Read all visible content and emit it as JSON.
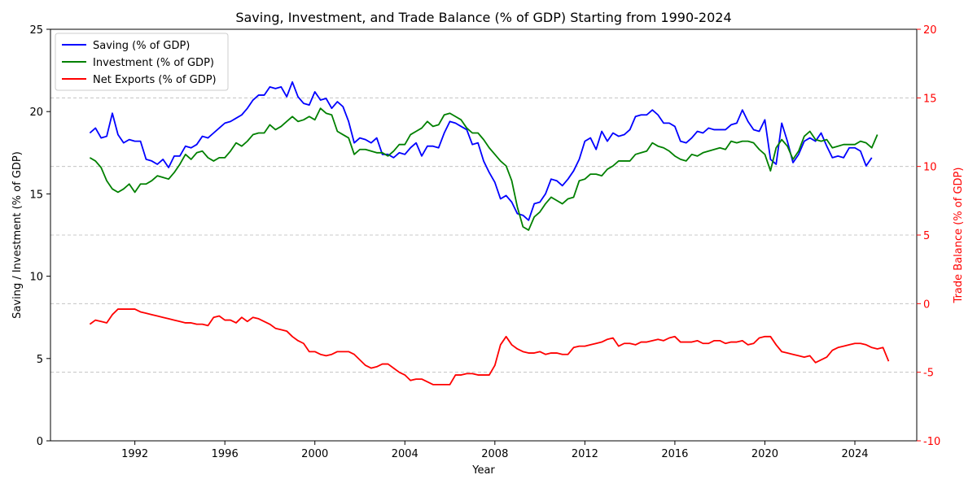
{
  "chart_data": {
    "type": "line",
    "title": "Saving, Investment, and Trade Balance (% of GDP) Starting from 1990-2024",
    "xlabel": "Year",
    "ylabel": "Saving / Investment (% of GDP)",
    "ylabel_right": "Trade Balance (% of GDP)",
    "xlim": [
      1988.25,
      2026.75
    ],
    "ylim": [
      0,
      25
    ],
    "ylim_right": [
      -10,
      20
    ],
    "x_ticks": [
      1992,
      1996,
      2000,
      2004,
      2008,
      2012,
      2016,
      2020,
      2024
    ],
    "y_ticks": [
      0,
      5,
      10,
      15,
      20,
      25
    ],
    "y_ticks_right": [
      -10,
      -5,
      0,
      5,
      10,
      15,
      20
    ],
    "grid": "right-axis horizontal dashed",
    "legend_position": "top-left",
    "x_start": 1990.0,
    "x_step": 0.25,
    "series": [
      {
        "name": "Saving (% of GDP)",
        "axis": "left",
        "color": "#0000ff",
        "values": [
          18.7,
          19.0,
          18.4,
          18.5,
          19.9,
          18.6,
          18.1,
          18.3,
          18.2,
          18.2,
          17.1,
          17.0,
          16.8,
          17.1,
          16.6,
          17.3,
          17.3,
          17.9,
          17.8,
          18.0,
          18.5,
          18.4,
          18.7,
          19.0,
          19.3,
          19.4,
          19.6,
          19.8,
          20.2,
          20.7,
          21.0,
          21.0,
          21.5,
          21.4,
          21.5,
          20.9,
          21.8,
          20.9,
          20.5,
          20.4,
          21.2,
          20.7,
          20.8,
          20.2,
          20.6,
          20.3,
          19.4,
          18.1,
          18.4,
          18.3,
          18.1,
          18.4,
          17.4,
          17.4,
          17.2,
          17.5,
          17.4,
          17.8,
          18.1,
          17.3,
          17.9,
          17.9,
          17.8,
          18.7,
          19.4,
          19.3,
          19.1,
          18.9,
          18.0,
          18.1,
          17.0,
          16.3,
          15.7,
          14.7,
          14.9,
          14.5,
          13.8,
          13.7,
          13.4,
          14.4,
          14.5,
          15.0,
          15.9,
          15.8,
          15.5,
          15.9,
          16.4,
          17.1,
          18.2,
          18.4,
          17.7,
          18.8,
          18.2,
          18.7,
          18.5,
          18.6,
          18.9,
          19.7,
          19.8,
          19.8,
          20.1,
          19.8,
          19.3,
          19.3,
          19.1,
          18.2,
          18.1,
          18.4,
          18.8,
          18.7,
          19.0,
          18.9,
          18.9,
          18.9,
          19.2,
          19.3,
          20.1,
          19.4,
          18.9,
          18.8,
          19.5,
          17.1,
          16.8,
          19.3,
          18.2,
          16.9,
          17.4,
          18.2,
          18.4,
          18.2,
          18.7,
          17.9,
          17.2,
          17.3,
          17.2,
          17.8,
          17.8,
          17.6,
          16.7,
          17.2
        ]
      },
      {
        "name": "Investment (% of GDP)",
        "axis": "left",
        "color": "#008000",
        "values": [
          17.2,
          17.0,
          16.6,
          15.8,
          15.3,
          15.1,
          15.3,
          15.6,
          15.1,
          15.6,
          15.6,
          15.8,
          16.1,
          16.0,
          15.9,
          16.3,
          16.8,
          17.4,
          17.1,
          17.5,
          17.6,
          17.2,
          17.0,
          17.2,
          17.2,
          17.6,
          18.1,
          17.9,
          18.2,
          18.6,
          18.7,
          18.7,
          19.2,
          18.9,
          19.1,
          19.4,
          19.7,
          19.4,
          19.5,
          19.7,
          19.5,
          20.2,
          19.9,
          19.8,
          18.8,
          18.6,
          18.4,
          17.4,
          17.7,
          17.7,
          17.6,
          17.5,
          17.5,
          17.3,
          17.6,
          18.0,
          18.0,
          18.6,
          18.8,
          19.0,
          19.4,
          19.1,
          19.2,
          19.8,
          19.9,
          19.7,
          19.5,
          19.0,
          18.7,
          18.7,
          18.3,
          17.8,
          17.4,
          17.0,
          16.7,
          15.8,
          14.2,
          13.0,
          12.8,
          13.6,
          13.9,
          14.4,
          14.8,
          14.6,
          14.4,
          14.7,
          14.8,
          15.8,
          15.9,
          16.2,
          16.2,
          16.1,
          16.5,
          16.7,
          17.0,
          17.0,
          17.0,
          17.4,
          17.5,
          17.6,
          18.1,
          17.9,
          17.8,
          17.6,
          17.3,
          17.1,
          17.0,
          17.4,
          17.3,
          17.5,
          17.6,
          17.7,
          17.8,
          17.7,
          18.2,
          18.1,
          18.2,
          18.2,
          18.1,
          17.7,
          17.4,
          16.4,
          17.8,
          18.3,
          17.9,
          17.1,
          17.6,
          18.5,
          18.8,
          18.3,
          18.2,
          18.3,
          17.8,
          17.9,
          18.0,
          18.0,
          18.0,
          18.2,
          18.1,
          17.8,
          18.6
        ]
      },
      {
        "name": "Net Exports (% of GDP)",
        "axis": "right",
        "color": "#ff0000",
        "values": [
          -1.5,
          -1.2,
          -1.3,
          -1.4,
          -0.8,
          -0.4,
          -0.4,
          -0.4,
          -0.4,
          -0.6,
          -0.7,
          -0.8,
          -0.9,
          -1.0,
          -1.1,
          -1.2,
          -1.3,
          -1.4,
          -1.4,
          -1.5,
          -1.5,
          -1.6,
          -1.0,
          -0.9,
          -1.2,
          -1.2,
          -1.4,
          -1.0,
          -1.3,
          -1.0,
          -1.1,
          -1.3,
          -1.5,
          -1.8,
          -1.9,
          -2.0,
          -2.4,
          -2.7,
          -2.9,
          -3.5,
          -3.5,
          -3.7,
          -3.8,
          -3.7,
          -3.5,
          -3.5,
          -3.5,
          -3.7,
          -4.1,
          -4.5,
          -4.7,
          -4.6,
          -4.4,
          -4.4,
          -4.7,
          -5.0,
          -5.2,
          -5.6,
          -5.5,
          -5.5,
          -5.7,
          -5.9,
          -5.9,
          -5.9,
          -5.9,
          -5.2,
          -5.2,
          -5.1,
          -5.1,
          -5.2,
          -5.2,
          -5.2,
          -4.5,
          -3.0,
          -2.4,
          -3.0,
          -3.3,
          -3.5,
          -3.6,
          -3.6,
          -3.5,
          -3.7,
          -3.6,
          -3.6,
          -3.7,
          -3.7,
          -3.2,
          -3.1,
          -3.1,
          -3.0,
          -2.9,
          -2.8,
          -2.6,
          -2.5,
          -3.1,
          -2.9,
          -2.9,
          -3.0,
          -2.8,
          -2.8,
          -2.7,
          -2.6,
          -2.7,
          -2.5,
          -2.4,
          -2.8,
          -2.8,
          -2.8,
          -2.7,
          -2.9,
          -2.9,
          -2.7,
          -2.7,
          -2.9,
          -2.8,
          -2.8,
          -2.7,
          -3.0,
          -2.9,
          -2.5,
          -2.4,
          -2.4,
          -3.0,
          -3.5,
          -3.6,
          -3.7,
          -3.8,
          -3.9,
          -3.8,
          -4.3,
          -4.1,
          -3.9,
          -3.4,
          -3.2,
          -3.1,
          -3.0,
          -2.9,
          -2.9,
          -3.0,
          -3.2,
          -3.3,
          -3.2,
          -4.2
        ]
      }
    ]
  }
}
